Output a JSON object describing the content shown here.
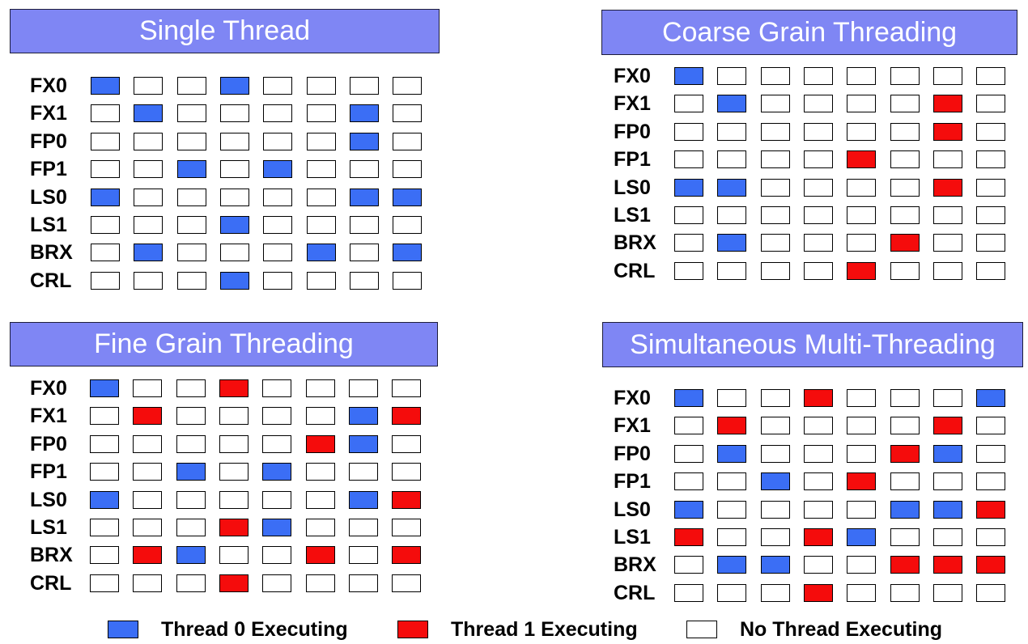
{
  "colors": {
    "thread0": "#3b6ef5",
    "thread1": "#f50c0c",
    "idle": "#ffffff",
    "title_bg": "#7f86f4"
  },
  "row_labels": [
    "FX0",
    "FX1",
    "FP0",
    "FP1",
    "LS0",
    "LS1",
    "BRX",
    "CRL"
  ],
  "panels": [
    {
      "id": "single",
      "title": "Single Thread",
      "grid": [
        [
          0,
          -1,
          -1,
          0,
          -1,
          -1,
          -1,
          -1
        ],
        [
          -1,
          0,
          -1,
          -1,
          -1,
          -1,
          0,
          -1
        ],
        [
          -1,
          -1,
          -1,
          -1,
          -1,
          -1,
          0,
          -1
        ],
        [
          -1,
          -1,
          0,
          -1,
          0,
          -1,
          -1,
          -1
        ],
        [
          0,
          -1,
          -1,
          -1,
          -1,
          -1,
          0,
          0
        ],
        [
          -1,
          -1,
          -1,
          0,
          -1,
          -1,
          -1,
          -1
        ],
        [
          -1,
          0,
          -1,
          -1,
          -1,
          0,
          -1,
          0
        ],
        [
          -1,
          -1,
          -1,
          0,
          -1,
          -1,
          -1,
          -1
        ]
      ]
    },
    {
      "id": "coarse",
      "title": "Coarse Grain Threading",
      "grid": [
        [
          0,
          -1,
          -1,
          -1,
          -1,
          -1,
          -1,
          -1
        ],
        [
          -1,
          0,
          -1,
          -1,
          -1,
          -1,
          1,
          -1
        ],
        [
          -1,
          -1,
          -1,
          -1,
          -1,
          -1,
          1,
          -1
        ],
        [
          -1,
          -1,
          -1,
          -1,
          1,
          -1,
          -1,
          -1
        ],
        [
          0,
          0,
          -1,
          -1,
          -1,
          -1,
          1,
          -1
        ],
        [
          -1,
          -1,
          -1,
          -1,
          -1,
          -1,
          -1,
          -1
        ],
        [
          -1,
          0,
          -1,
          -1,
          -1,
          1,
          -1,
          -1
        ],
        [
          -1,
          -1,
          -1,
          -1,
          1,
          -1,
          -1,
          -1
        ]
      ]
    },
    {
      "id": "fine",
      "title": "Fine Grain Threading",
      "grid": [
        [
          0,
          -1,
          -1,
          1,
          -1,
          -1,
          -1,
          -1
        ],
        [
          -1,
          1,
          -1,
          -1,
          -1,
          -1,
          0,
          1
        ],
        [
          -1,
          -1,
          -1,
          -1,
          -1,
          1,
          0,
          -1
        ],
        [
          -1,
          -1,
          0,
          -1,
          0,
          -1,
          -1,
          -1
        ],
        [
          0,
          -1,
          -1,
          -1,
          -1,
          -1,
          0,
          1
        ],
        [
          -1,
          -1,
          -1,
          1,
          0,
          -1,
          -1,
          -1
        ],
        [
          -1,
          1,
          0,
          -1,
          -1,
          1,
          -1,
          1
        ],
        [
          -1,
          -1,
          -1,
          1,
          -1,
          -1,
          -1,
          -1
        ]
      ]
    },
    {
      "id": "smt",
      "title": "Simultaneous Multi-Threading",
      "grid": [
        [
          0,
          -1,
          -1,
          1,
          -1,
          -1,
          -1,
          0
        ],
        [
          -1,
          1,
          -1,
          -1,
          -1,
          -1,
          1,
          -1
        ],
        [
          -1,
          0,
          -1,
          -1,
          -1,
          1,
          0,
          -1
        ],
        [
          -1,
          -1,
          0,
          -1,
          1,
          -1,
          -1,
          -1
        ],
        [
          0,
          -1,
          -1,
          -1,
          -1,
          0,
          0,
          1
        ],
        [
          1,
          -1,
          -1,
          1,
          0,
          -1,
          -1,
          -1
        ],
        [
          -1,
          0,
          0,
          -1,
          -1,
          1,
          1,
          1
        ],
        [
          -1,
          -1,
          -1,
          1,
          -1,
          -1,
          -1,
          -1
        ]
      ]
    }
  ],
  "legend": [
    {
      "key": "thread0",
      "label": "Thread 0 Executing"
    },
    {
      "key": "thread1",
      "label": "Thread 1 Executing"
    },
    {
      "key": "idle",
      "label": "No Thread Executing"
    }
  ]
}
